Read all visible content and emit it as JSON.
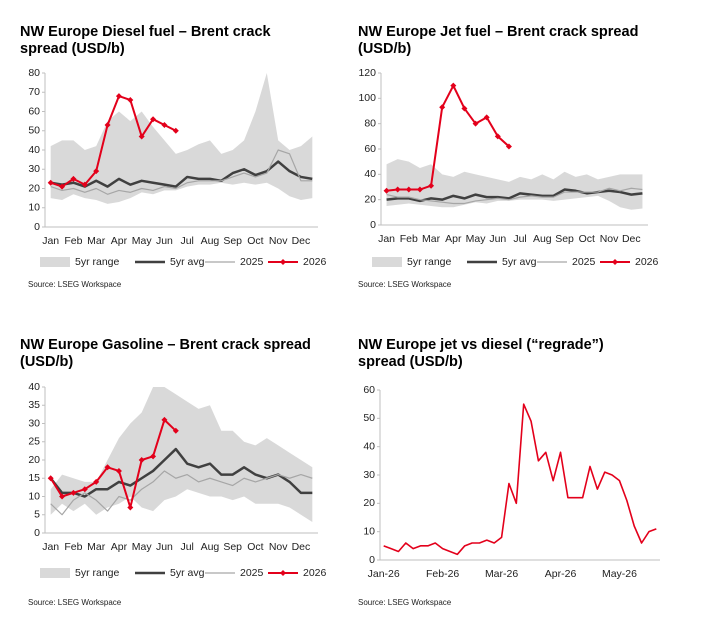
{
  "chart_data": [
    {
      "type": "line",
      "title": "NW Europe Diesel fuel – Brent crack spread (USD/b)",
      "source": "Source: LSEG Workspace",
      "categories": [
        "Jan",
        null,
        "Feb",
        null,
        "Mar",
        null,
        "Apr",
        null,
        "May",
        null,
        "Jun",
        null,
        "Jul",
        null,
        "Aug",
        null,
        "Sep",
        null,
        "Oct",
        null,
        "Nov",
        null,
        "Dec",
        null
      ],
      "ylim": [
        0,
        80
      ],
      "yticks": [
        0,
        10,
        20,
        30,
        40,
        50,
        60,
        70,
        80
      ],
      "series": [
        {
          "name": "5yr range",
          "color": "#d9d9d9",
          "high": [
            42,
            45,
            45,
            40,
            42,
            55,
            60,
            55,
            60,
            52,
            45,
            38,
            40,
            43,
            45,
            38,
            40,
            45,
            60,
            80,
            45,
            40,
            42,
            47
          ],
          "low": [
            15,
            14,
            17,
            15,
            14,
            12,
            13,
            15,
            18,
            17,
            19,
            19,
            21,
            22,
            22,
            23,
            22,
            23,
            22,
            23,
            20,
            16,
            14,
            15
          ]
        },
        {
          "name": "5yr avg",
          "color": "#404040",
          "line_width": 2.5,
          "values": [
            23,
            22,
            23,
            21,
            24,
            21,
            25,
            22,
            24,
            23,
            22,
            21,
            26,
            25,
            25,
            24,
            28,
            30,
            27,
            29,
            34,
            29,
            26,
            25
          ]
        },
        {
          "name": "2025",
          "color": "#a6a6a6",
          "line_width": 1.2,
          "values": [
            21,
            19,
            20,
            18,
            20,
            17,
            19,
            18,
            20,
            19,
            21,
            20,
            23,
            24,
            24,
            24,
            26,
            28,
            26,
            28,
            40,
            38,
            24,
            24
          ]
        },
        {
          "name": "2026",
          "color": "#e3001b",
          "line_width": 2,
          "marker": "diamond",
          "values": [
            23,
            21,
            25,
            22,
            29,
            53,
            68,
            66,
            47,
            56,
            53,
            50,
            null,
            null,
            null,
            null,
            null,
            null,
            null,
            null,
            null,
            null,
            null,
            null
          ]
        }
      ]
    },
    {
      "type": "line",
      "title": "NW Europe Jet fuel – Brent crack spread (USD/b)",
      "source": "Source: LSEG Workspace",
      "categories": [
        "Jan",
        null,
        "Feb",
        null,
        "Mar",
        null,
        "Apr",
        null,
        "May",
        null,
        "Jun",
        null,
        "Jul",
        null,
        "Aug",
        null,
        "Sep",
        null,
        "Oct",
        null,
        "Nov",
        null,
        "Dec",
        null
      ],
      "ylim": [
        0,
        120
      ],
      "yticks": [
        0,
        20,
        40,
        60,
        80,
        100,
        120
      ],
      "series": [
        {
          "name": "5yr range",
          "color": "#d9d9d9",
          "high": [
            48,
            52,
            50,
            45,
            48,
            40,
            38,
            42,
            40,
            38,
            36,
            34,
            38,
            36,
            40,
            36,
            42,
            38,
            40,
            36,
            38,
            40,
            40,
            40
          ],
          "low": [
            15,
            16,
            17,
            16,
            15,
            14,
            14,
            16,
            18,
            17,
            19,
            19,
            20,
            20,
            20,
            19,
            20,
            21,
            22,
            23,
            19,
            14,
            12,
            13
          ]
        },
        {
          "name": "5yr avg",
          "color": "#404040",
          "line_width": 2.5,
          "values": [
            20,
            21,
            21,
            19,
            21,
            20,
            23,
            21,
            24,
            22,
            22,
            21,
            25,
            24,
            23,
            23,
            28,
            27,
            25,
            26,
            27,
            26,
            24,
            25
          ]
        },
        {
          "name": "2025",
          "color": "#a6a6a6",
          "line_width": 1.2,
          "values": [
            24,
            22,
            22,
            20,
            19,
            18,
            17,
            17,
            19,
            20,
            21,
            20,
            22,
            23,
            22,
            22,
            26,
            26,
            26,
            26,
            29,
            27,
            29,
            28
          ]
        },
        {
          "name": "2026",
          "color": "#e3001b",
          "line_width": 2,
          "marker": "diamond",
          "values": [
            27,
            28,
            28,
            28,
            31,
            93,
            110,
            92,
            80,
            85,
            70,
            62,
            null,
            null,
            null,
            null,
            null,
            null,
            null,
            null,
            null,
            null,
            null,
            null
          ]
        }
      ]
    },
    {
      "type": "line",
      "title": "NW Europe Gasoline – Brent crack spread (USD/b)",
      "source": "Source: LSEG Workspace",
      "categories": [
        "Jan",
        null,
        "Feb",
        null,
        "Mar",
        null,
        "Apr",
        null,
        "May",
        null,
        "Jun",
        null,
        "Jul",
        null,
        "Aug",
        null,
        "Sep",
        null,
        "Oct",
        null,
        "Nov",
        null,
        "Dec",
        null
      ],
      "ylim": [
        0,
        40
      ],
      "yticks": [
        0,
        5,
        10,
        15,
        20,
        25,
        30,
        35,
        40
      ],
      "series": [
        {
          "name": "5yr range",
          "color": "#d9d9d9",
          "high": [
            12,
            16,
            15,
            14,
            14,
            20,
            26,
            30,
            33,
            40,
            40,
            38,
            36,
            34,
            35,
            28,
            28,
            25,
            24,
            26,
            24,
            22,
            20,
            18
          ],
          "low": [
            5,
            8,
            6,
            8,
            5,
            7,
            8,
            10,
            7,
            6,
            9,
            10,
            12,
            11,
            10,
            10,
            9,
            10,
            8,
            8,
            8,
            7,
            5,
            3
          ]
        },
        {
          "name": "5yr avg",
          "color": "#404040",
          "line_width": 2.5,
          "values": [
            15,
            11,
            11,
            10,
            12,
            12,
            14,
            13,
            15,
            17,
            20,
            23,
            19,
            18,
            19,
            16,
            16,
            18,
            16,
            15,
            16,
            14,
            11,
            11
          ]
        },
        {
          "name": "2025",
          "color": "#a6a6a6",
          "line_width": 1.2,
          "values": [
            8,
            5,
            9,
            11,
            9,
            6,
            10,
            9,
            12,
            14,
            17,
            15,
            16,
            14,
            15,
            14,
            13,
            15,
            14,
            15,
            16,
            15,
            16,
            15
          ]
        },
        {
          "name": "2026",
          "color": "#e3001b",
          "line_width": 2,
          "marker": "diamond",
          "values": [
            15,
            10,
            11,
            12,
            14,
            18,
            17,
            7,
            20,
            21,
            31,
            28,
            null,
            null,
            null,
            null,
            null,
            null,
            null,
            null,
            null,
            null,
            null,
            null
          ]
        }
      ]
    },
    {
      "type": "line",
      "title": "NW Europe jet vs diesel (“regrade”) spread (USD/b)",
      "source": "Source: LSEG Workspace",
      "categories": [
        "Jan-26",
        null,
        null,
        null,
        null,
        null,
        null,
        null,
        "Feb-26",
        null,
        null,
        null,
        null,
        null,
        null,
        null,
        "Mar-26",
        null,
        null,
        null,
        null,
        null,
        null,
        null,
        "Apr-26",
        null,
        null,
        null,
        null,
        null,
        null,
        null,
        "May-26",
        null,
        null,
        null,
        null,
        null
      ],
      "ylim": [
        0,
        60
      ],
      "yticks": [
        0,
        10,
        20,
        30,
        40,
        50,
        60
      ],
      "series": [
        {
          "color": "#e3001b",
          "line_width": 1.6,
          "values": [
            5,
            4,
            3,
            6,
            4,
            5,
            5,
            6,
            4,
            3,
            2,
            5,
            6,
            6,
            7,
            6,
            8,
            27,
            20,
            55,
            49,
            35,
            38,
            28,
            38,
            22,
            22,
            22,
            33,
            25,
            31,
            30,
            28,
            21,
            12,
            6,
            10,
            11
          ]
        }
      ]
    }
  ]
}
